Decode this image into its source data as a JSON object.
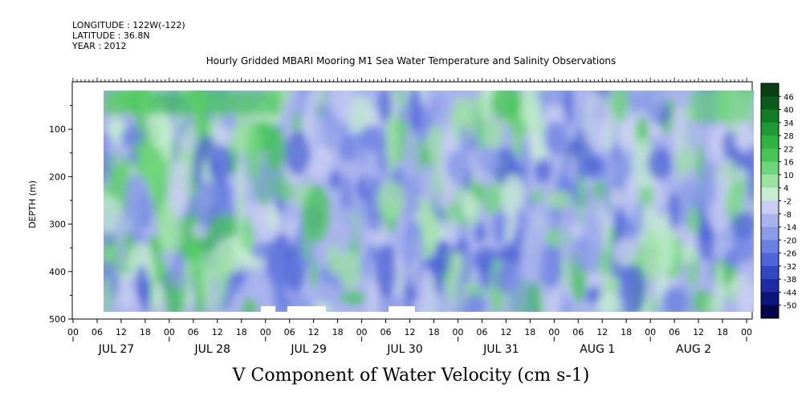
{
  "header": {
    "longitude": "LONGITUDE : 122W(-122)",
    "latitude": "LATITUDE : 36.8N",
    "year": "YEAR : 2012"
  },
  "chart_data": {
    "type": "heatmap",
    "title": "Hourly Gridded MBARI Mooring M1 Sea Water Temperature and Salinity Observations",
    "xlabel": "V Component of Water Velocity (cm s-1)",
    "ylabel": "DEPTH (m)",
    "ylim": [
      500,
      0
    ],
    "y_ticks": [
      100,
      200,
      300,
      400,
      500
    ],
    "y_tick_labels": [
      "100",
      "200",
      "300",
      "400",
      "500"
    ],
    "x_hour_ticks": [
      "00",
      "06",
      "12",
      "18",
      "00",
      "06",
      "12",
      "18",
      "00",
      "06",
      "12",
      "18",
      "00",
      "06",
      "12",
      "18",
      "00",
      "06",
      "12",
      "18",
      "00",
      "06",
      "12",
      "18",
      "00",
      "06",
      "12",
      "18",
      "00"
    ],
    "x_day_labels": [
      "JUL 27",
      "JUL 28",
      "JUL 29",
      "JUL 30",
      "JUL 31",
      "AUG  1",
      "AUG  2"
    ],
    "colorbar": {
      "levels": [
        "46",
        "40",
        "34",
        "28",
        "22",
        "16",
        "10",
        "4",
        "-2",
        "-8",
        "-14",
        "-20",
        "-26",
        "-32",
        "-38",
        "-44",
        "-50"
      ],
      "colors": [
        "#0a3f16",
        "#0d5a1e",
        "#137a26",
        "#1f9a34",
        "#2fb343",
        "#45c457",
        "#6fd57b",
        "#9ce2a2",
        "#c6ecd2",
        "#c8cdf1",
        "#a9b4ec",
        "#8a9be7",
        "#6c80e1",
        "#4f64d6",
        "#3346c4",
        "#1f2ba3",
        "#0e157a",
        "#05064a"
      ]
    },
    "annotation": "Data present roughly from 08h Jul 27 to end of Aug 2, depth 20-490 m; positive (green) patches near surface and early period, negative (blue) dominant at depth."
  }
}
